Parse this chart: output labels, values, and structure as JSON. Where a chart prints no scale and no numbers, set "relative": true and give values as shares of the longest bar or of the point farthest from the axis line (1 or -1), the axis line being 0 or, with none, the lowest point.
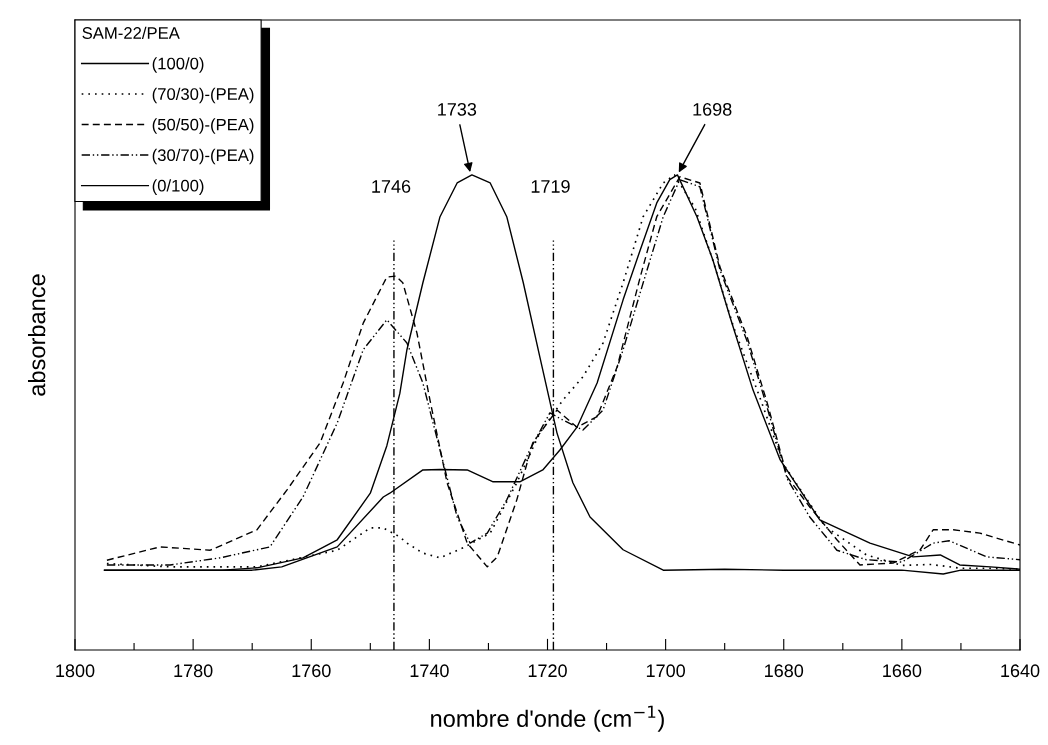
{
  "chart_data": {
    "type": "line",
    "relative": true,
    "xlabel": "nombre d'onde (cm$^{−1}$)",
    "ylabel": "absorbance",
    "legend_title": "SAM-22/PEA",
    "legend": "top left",
    "xlim": [
      1800,
      1640
    ],
    "xticks": [
      1800,
      {
        "value": 1790,
        "label": null
      },
      1780,
      {
        "value": 1770,
        "label": null
      },
      1760,
      {
        "value": 1750,
        "label": null
      },
      1740,
      {
        "value": 1730,
        "label": null
      },
      1720,
      {
        "value": 1710,
        "label": null
      },
      1700,
      {
        "value": 1690,
        "label": null
      },
      1680,
      {
        "value": 1670,
        "label": null
      },
      1660,
      {
        "value": 1650,
        "label": null
      },
      1640
    ],
    "grid": false,
    "series": [
      {
        "name": "(100/0)",
        "color": "#000000",
        "line_style": "solid",
        "x": [
          1795,
          1770,
          1765,
          1755.6,
          1747.8,
          1746.7,
          1741.1,
          1738.2,
          1733.6,
          1729.2,
          1724.7,
          1720.8,
          1717.9,
          1715,
          1711.6,
          1707.2,
          1704.3,
          1701.5,
          1699.3,
          1698,
          1694.7,
          1692,
          1689.1,
          1685.2,
          1680.6,
          1673.9,
          1665.4,
          1658.1,
          1653.5,
          1650.2,
          1645,
          1640
        ],
        "values": [
          0.168,
          0.168,
          0.175,
          0.217,
          0.322,
          0.33,
          0.379,
          0.38,
          0.379,
          0.354,
          0.354,
          0.379,
          0.421,
          0.469,
          0.562,
          0.737,
          0.842,
          0.941,
          0.99,
          1.0,
          0.912,
          0.821,
          0.701,
          0.547,
          0.4,
          0.274,
          0.225,
          0.196,
          0.2,
          0.179,
          0.175,
          0.17
        ]
      },
      {
        "name": "(70/30)-(PEA)",
        "color": "#000000",
        "line_style": "dotted",
        "x": [
          1794.6,
          1783.9,
          1769.2,
          1755.6,
          1750,
          1747.8,
          1745,
          1743.8,
          1741.1,
          1738.2,
          1734.3,
          1729.7,
          1725.2,
          1721.3,
          1717.4,
          1714,
          1710.6,
          1707.2,
          1703.8,
          1700.4,
          1698.5,
          1695,
          1692,
          1688.5,
          1684,
          1680,
          1673,
          1666,
          1660,
          1655,
          1650,
          1645,
          1640
        ],
        "values": [
          0.182,
          0.175,
          0.175,
          0.21,
          0.257,
          0.257,
          0.238,
          0.225,
          0.204,
          0.194,
          0.215,
          0.246,
          0.352,
          0.457,
          0.526,
          0.575,
          0.646,
          0.773,
          0.912,
          0.983,
          1.0,
          0.93,
          0.82,
          0.68,
          0.53,
          0.39,
          0.26,
          0.2,
          0.178,
          0.18,
          0.172,
          0.172,
          0.17
        ]
      },
      {
        "name": "(50/50)-(PEA)",
        "color": "#000000",
        "line_style": "dashed",
        "x": [
          1794.6,
          1785.6,
          1777.1,
          1769.2,
          1764.1,
          1758.5,
          1754.6,
          1751.2,
          1747.2,
          1745.7,
          1744.5,
          1742.1,
          1739.9,
          1737,
          1733.6,
          1730.2,
          1728.5,
          1725.2,
          1722.5,
          1718.4,
          1715,
          1711.6,
          1708.2,
          1704.3,
          1701.5,
          1697.6,
          1694.2,
          1690.8,
          1686.2,
          1682.8,
          1679.4,
          1675.6,
          1671,
          1667.1,
          1661.5,
          1656.9,
          1654.7,
          1651.3,
          1646.8,
          1640
        ],
        "values": [
          0.189,
          0.217,
          0.21,
          0.253,
          0.337,
          0.436,
          0.562,
          0.688,
          0.785,
          0.787,
          0.773,
          0.667,
          0.526,
          0.352,
          0.225,
          0.175,
          0.196,
          0.316,
          0.436,
          0.505,
          0.469,
          0.491,
          0.596,
          0.785,
          0.912,
          0.996,
          0.983,
          0.806,
          0.659,
          0.52,
          0.364,
          0.301,
          0.232,
          0.179,
          0.183,
          0.211,
          0.253,
          0.253,
          0.246,
          0.221
        ]
      },
      {
        "name": "(30/70)-(PEA)",
        "color": "#000000",
        "line_style": "dashdot",
        "x": [
          1794.6,
          1783.9,
          1775.4,
          1767,
          1761.4,
          1755.6,
          1751.2,
          1747.2,
          1743.8,
          1741.1,
          1738.2,
          1735.3,
          1733.1,
          1730.2,
          1726.9,
          1723,
          1719.6,
          1717.4,
          1714,
          1710.6,
          1707.2,
          1703.8,
          1700.4,
          1697.6,
          1694.2,
          1690.8,
          1686.2,
          1682.8,
          1679.4,
          1675.6,
          1671,
          1666,
          1660,
          1654.7,
          1652,
          1645.6,
          1640
        ],
        "values": [
          0.179,
          0.179,
          0.194,
          0.217,
          0.322,
          0.478,
          0.632,
          0.695,
          0.646,
          0.562,
          0.421,
          0.28,
          0.225,
          0.246,
          0.316,
          0.421,
          0.499,
          0.484,
          0.463,
          0.505,
          0.632,
          0.773,
          0.912,
          0.99,
          0.975,
          0.8,
          0.65,
          0.51,
          0.36,
          0.28,
          0.21,
          0.19,
          0.185,
          0.225,
          0.23,
          0.196,
          0.19
        ]
      },
      {
        "name": "(0/100)",
        "color": "#000000",
        "line_style": "solid",
        "x": [
          1795,
          1775,
          1769.2,
          1761.4,
          1755.6,
          1750,
          1747.2,
          1745,
          1743.8,
          1741.1,
          1738.2,
          1735.3,
          1732.8,
          1729.7,
          1726.9,
          1724.1,
          1721.3,
          1718.4,
          1715.7,
          1712.8,
          1707.2,
          1700.4,
          1690,
          1680,
          1670,
          1660,
          1653,
          1650,
          1640
        ],
        "values": [
          0.168,
          0.168,
          0.173,
          0.194,
          0.232,
          0.33,
          0.43,
          0.54,
          0.632,
          0.773,
          0.912,
          0.983,
          1.0,
          0.983,
          0.912,
          0.773,
          0.617,
          0.457,
          0.352,
          0.28,
          0.211,
          0.168,
          0.17,
          0.168,
          0.168,
          0.168,
          0.16,
          0.168,
          0.168
        ]
      }
    ],
    "ref_lines": [
      {
        "axis": "x",
        "value": 1746,
        "label": "1746",
        "color": "#000000",
        "line_style": "dashdot"
      },
      {
        "axis": "x",
        "value": 1719,
        "label": "1719",
        "color": "#000000",
        "line_style": "dashdot"
      }
    ],
    "annotations": [
      {
        "text": "1733",
        "x": 1733,
        "y": 1.0
      },
      {
        "text": "1698",
        "x": 1698,
        "y": 1.0
      }
    ]
  }
}
